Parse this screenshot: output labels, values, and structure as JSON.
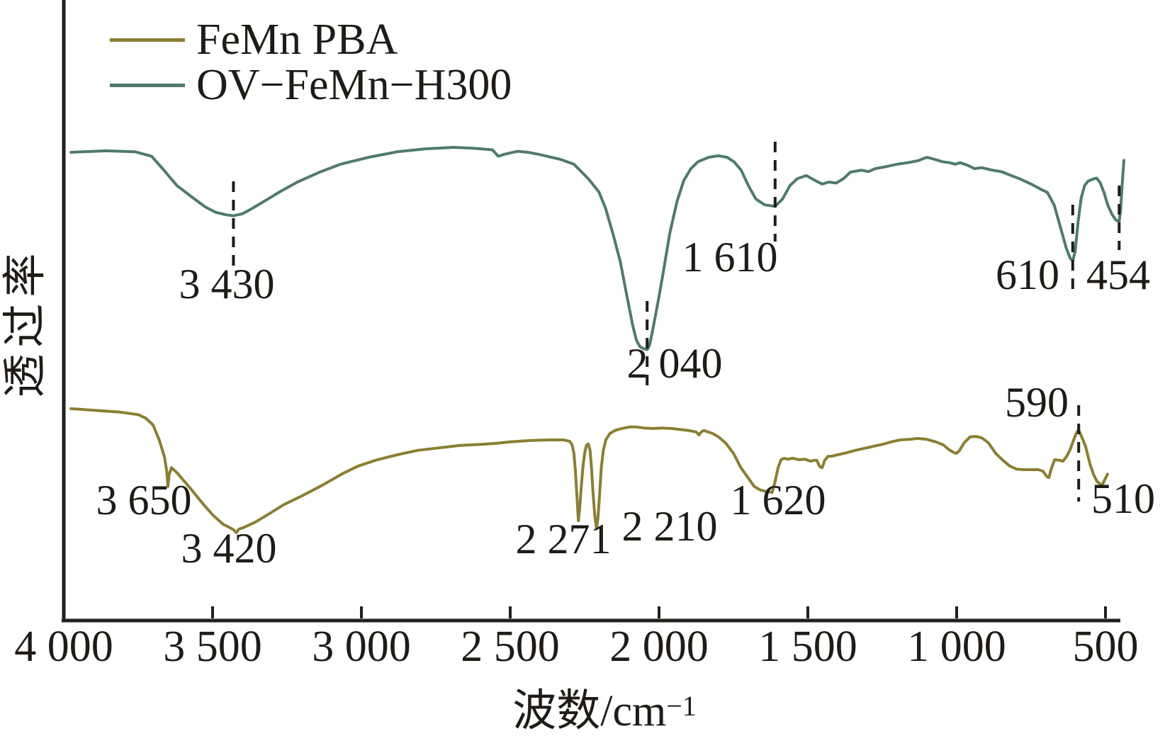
{
  "chart_data": {
    "type": "line",
    "title": "",
    "xlabel": "波数/cm⁻¹",
    "xlabel_base": "波数/cm",
    "xlabel_exponent": "−1",
    "ylabel": "透过率",
    "x_axis_reversed": true,
    "x_range": [
      4000,
      450
    ],
    "x_tick_values": [
      4000,
      3500,
      3000,
      2500,
      2000,
      1500,
      1000,
      500
    ],
    "x_tick_labels": [
      "4 000",
      "3 500",
      "3 000",
      "2 500",
      "2 000",
      "1 500",
      "1 000",
      "500"
    ],
    "y_axis_note": "transmittance, arbitrary units, no ticks",
    "grid": false,
    "legend_position": "top-left",
    "axis_color": "#231f1c",
    "background_color": "#ffffff",
    "series": [
      {
        "name": "FeMn PBA",
        "color": "#8a7f32",
        "labeled_peaks": [
          3650,
          3420,
          2271,
          2210,
          1620,
          590,
          510
        ],
        "points": [
          [
            3976,
            43.3
          ],
          [
            3880,
            42.9
          ],
          [
            3810,
            42.6
          ],
          [
            3750,
            42.1
          ],
          [
            3725,
            41.4
          ],
          [
            3700,
            40.0
          ],
          [
            3680,
            37.1
          ],
          [
            3662,
            33.6
          ],
          [
            3654,
            30.7
          ],
          [
            3650,
            27.6
          ],
          [
            3646,
            30.0
          ],
          [
            3638,
            31.4
          ],
          [
            3620,
            30.4
          ],
          [
            3600,
            29.0
          ],
          [
            3570,
            26.9
          ],
          [
            3535,
            24.3
          ],
          [
            3500,
            21.9
          ],
          [
            3465,
            20.0
          ],
          [
            3442,
            19.3
          ],
          [
            3430,
            18.9
          ],
          [
            3420,
            18.3
          ],
          [
            3412,
            19.0
          ],
          [
            3393,
            19.4
          ],
          [
            3357,
            20.4
          ],
          [
            3310,
            22.1
          ],
          [
            3262,
            23.9
          ],
          [
            3200,
            25.7
          ],
          [
            3130,
            27.9
          ],
          [
            3060,
            30.3
          ],
          [
            3012,
            31.7
          ],
          [
            2952,
            32.9
          ],
          [
            2880,
            34.0
          ],
          [
            2810,
            34.9
          ],
          [
            2738,
            35.4
          ],
          [
            2667,
            35.9
          ],
          [
            2595,
            36.1
          ],
          [
            2548,
            36.3
          ],
          [
            2500,
            36.6
          ],
          [
            2429,
            36.9
          ],
          [
            2370,
            37.0
          ],
          [
            2320,
            37.0
          ],
          [
            2300,
            36.7
          ],
          [
            2292,
            36.0
          ],
          [
            2286,
            34.3
          ],
          [
            2281,
            30.7
          ],
          [
            2276,
            25.7
          ],
          [
            2271,
            20.7
          ],
          [
            2267,
            23.0
          ],
          [
            2262,
            27.0
          ],
          [
            2256,
            31.4
          ],
          [
            2250,
            34.3
          ],
          [
            2244,
            35.9
          ],
          [
            2238,
            36.2
          ],
          [
            2232,
            35.0
          ],
          [
            2227,
            31.4
          ],
          [
            2222,
            26.4
          ],
          [
            2216,
            21.8
          ],
          [
            2210,
            19.0
          ],
          [
            2205,
            21.4
          ],
          [
            2200,
            25.7
          ],
          [
            2194,
            31.4
          ],
          [
            2187,
            35.0
          ],
          [
            2178,
            37.1
          ],
          [
            2165,
            38.3
          ],
          [
            2148,
            38.9
          ],
          [
            2125,
            39.3
          ],
          [
            2100,
            39.6
          ],
          [
            2075,
            39.6
          ],
          [
            2050,
            39.4
          ],
          [
            2020,
            39.3
          ],
          [
            1990,
            39.4
          ],
          [
            1960,
            39.3
          ],
          [
            1930,
            39.1
          ],
          [
            1900,
            38.9
          ],
          [
            1875,
            38.6
          ],
          [
            1866,
            38.0
          ],
          [
            1858,
            38.6
          ],
          [
            1850,
            38.9
          ],
          [
            1840,
            38.7
          ],
          [
            1820,
            38.3
          ],
          [
            1800,
            37.6
          ],
          [
            1775,
            36.3
          ],
          [
            1750,
            34.3
          ],
          [
            1725,
            31.4
          ],
          [
            1700,
            29.3
          ],
          [
            1680,
            27.6
          ],
          [
            1660,
            26.9
          ],
          [
            1640,
            26.6
          ],
          [
            1620,
            26.4
          ],
          [
            1610,
            28.6
          ],
          [
            1600,
            31.4
          ],
          [
            1590,
            33.0
          ],
          [
            1580,
            33.3
          ],
          [
            1568,
            33.1
          ],
          [
            1550,
            33.3
          ],
          [
            1530,
            33.0
          ],
          [
            1510,
            33.1
          ],
          [
            1490,
            32.7
          ],
          [
            1478,
            32.9
          ],
          [
            1470,
            32.9
          ],
          [
            1460,
            31.6
          ],
          [
            1452,
            31.4
          ],
          [
            1443,
            32.9
          ],
          [
            1432,
            33.7
          ],
          [
            1420,
            33.7
          ],
          [
            1400,
            34.0
          ],
          [
            1370,
            34.4
          ],
          [
            1340,
            34.9
          ],
          [
            1310,
            35.3
          ],
          [
            1280,
            35.7
          ],
          [
            1250,
            36.1
          ],
          [
            1220,
            36.6
          ],
          [
            1190,
            37.0
          ],
          [
            1160,
            37.1
          ],
          [
            1130,
            37.3
          ],
          [
            1100,
            37.1
          ],
          [
            1070,
            36.6
          ],
          [
            1045,
            36.0
          ],
          [
            1025,
            35.0
          ],
          [
            1008,
            34.4
          ],
          [
            1000,
            34.3
          ],
          [
            990,
            34.9
          ],
          [
            975,
            36.4
          ],
          [
            955,
            37.6
          ],
          [
            935,
            37.7
          ],
          [
            915,
            37.4
          ],
          [
            893,
            36.4
          ],
          [
            869,
            34.3
          ],
          [
            845,
            32.9
          ],
          [
            821,
            31.7
          ],
          [
            798,
            31.1
          ],
          [
            775,
            31.0
          ],
          [
            750,
            31.0
          ],
          [
            726,
            31.0
          ],
          [
            710,
            30.7
          ],
          [
            697,
            29.6
          ],
          [
            690,
            29.4
          ],
          [
            683,
            31.0
          ],
          [
            671,
            33.0
          ],
          [
            655,
            32.9
          ],
          [
            643,
            32.7
          ],
          [
            631,
            33.6
          ],
          [
            619,
            35.0
          ],
          [
            605,
            37.3
          ],
          [
            596,
            38.6
          ],
          [
            590,
            39.0
          ],
          [
            582,
            37.9
          ],
          [
            567,
            35.7
          ],
          [
            552,
            32.1
          ],
          [
            540,
            30.0
          ],
          [
            528,
            28.6
          ],
          [
            518,
            28.1
          ],
          [
            510,
            28.0
          ],
          [
            503,
            28.9
          ],
          [
            497,
            29.6
          ],
          [
            493,
            30.1
          ]
        ]
      },
      {
        "name": "OV−FeMn−H300",
        "color": "#4f7a70",
        "labeled_peaks": [
          3430,
          2040,
          1610,
          610,
          454
        ],
        "points": [
          [
            3976,
            95.0
          ],
          [
            3860,
            95.3
          ],
          [
            3760,
            95.1
          ],
          [
            3705,
            94.2
          ],
          [
            3665,
            91.5
          ],
          [
            3620,
            88.3
          ],
          [
            3570,
            86.0
          ],
          [
            3525,
            84.0
          ],
          [
            3490,
            82.9
          ],
          [
            3455,
            82.4
          ],
          [
            3430,
            82.2
          ],
          [
            3400,
            82.6
          ],
          [
            3375,
            83.4
          ],
          [
            3330,
            85.0
          ],
          [
            3275,
            87.0
          ],
          [
            3215,
            89.0
          ],
          [
            3140,
            91.0
          ],
          [
            3070,
            92.6
          ],
          [
            2975,
            94.0
          ],
          [
            2880,
            95.1
          ],
          [
            2785,
            95.7
          ],
          [
            2690,
            96.0
          ],
          [
            2620,
            95.8
          ],
          [
            2560,
            95.5
          ],
          [
            2540,
            94.2
          ],
          [
            2520,
            94.6
          ],
          [
            2475,
            95.2
          ],
          [
            2440,
            95.0
          ],
          [
            2405,
            94.6
          ],
          [
            2333,
            93.6
          ],
          [
            2286,
            92.6
          ],
          [
            2238,
            89.7
          ],
          [
            2202,
            87.0
          ],
          [
            2179,
            83.6
          ],
          [
            2155,
            78.6
          ],
          [
            2130,
            72.9
          ],
          [
            2107,
            65.7
          ],
          [
            2088,
            60.0
          ],
          [
            2076,
            57.1
          ],
          [
            2064,
            55.8
          ],
          [
            2052,
            55.4
          ],
          [
            2040,
            55.2
          ],
          [
            2032,
            56.1
          ],
          [
            2023,
            58.6
          ],
          [
            2005,
            64.3
          ],
          [
            1988,
            70.0
          ],
          [
            1964,
            78.6
          ],
          [
            1940,
            85.0
          ],
          [
            1917,
            89.3
          ],
          [
            1893,
            91.7
          ],
          [
            1869,
            93.1
          ],
          [
            1833,
            94.0
          ],
          [
            1800,
            94.3
          ],
          [
            1772,
            94.0
          ],
          [
            1748,
            93.1
          ],
          [
            1724,
            91.4
          ],
          [
            1700,
            88.3
          ],
          [
            1675,
            85.6
          ],
          [
            1645,
            84.4
          ],
          [
            1610,
            84.1
          ],
          [
            1585,
            85.6
          ],
          [
            1560,
            88.3
          ],
          [
            1535,
            89.7
          ],
          [
            1505,
            90.3
          ],
          [
            1475,
            89.3
          ],
          [
            1452,
            88.6
          ],
          [
            1430,
            89.0
          ],
          [
            1405,
            88.8
          ],
          [
            1380,
            89.7
          ],
          [
            1357,
            91.0
          ],
          [
            1320,
            91.4
          ],
          [
            1297,
            91.1
          ],
          [
            1274,
            91.7
          ],
          [
            1238,
            92.1
          ],
          [
            1200,
            92.6
          ],
          [
            1165,
            92.9
          ],
          [
            1130,
            93.3
          ],
          [
            1100,
            94.0
          ],
          [
            1075,
            93.6
          ],
          [
            1048,
            93.1
          ],
          [
            1024,
            92.9
          ],
          [
            1005,
            92.6
          ],
          [
            988,
            92.9
          ],
          [
            964,
            92.4
          ],
          [
            940,
            91.7
          ],
          [
            916,
            91.9
          ],
          [
            880,
            91.4
          ],
          [
            850,
            91.1
          ],
          [
            820,
            90.4
          ],
          [
            786,
            89.6
          ],
          [
            750,
            88.6
          ],
          [
            719,
            87.6
          ],
          [
            695,
            86.9
          ],
          [
            672,
            84.3
          ],
          [
            652,
            80.0
          ],
          [
            632,
            75.7
          ],
          [
            618,
            73.6
          ],
          [
            610,
            73.1
          ],
          [
            602,
            75.0
          ],
          [
            592,
            81.0
          ],
          [
            582,
            85.7
          ],
          [
            570,
            88.3
          ],
          [
            558,
            89.2
          ],
          [
            542,
            89.6
          ],
          [
            530,
            89.8
          ],
          [
            518,
            88.9
          ],
          [
            505,
            86.9
          ],
          [
            492,
            84.3
          ],
          [
            478,
            82.5
          ],
          [
            466,
            81.4
          ],
          [
            454,
            81.0
          ],
          [
            449,
            83.5
          ],
          [
            445,
            87.5
          ],
          [
            441,
            91.0
          ],
          [
            438,
            93.4
          ]
        ]
      }
    ],
    "annotations": [
      {
        "text": "3 430",
        "series": "OV−FeMn−H300",
        "wavenumber": 3430,
        "dashed": true
      },
      {
        "text": "2 040",
        "series": "OV−FeMn−H300",
        "wavenumber": 2040,
        "dashed": true
      },
      {
        "text": "1 610",
        "series": "OV−FeMn−H300",
        "wavenumber": 1610,
        "dashed": true
      },
      {
        "text": "610",
        "series": "OV−FeMn−H300",
        "wavenumber": 610,
        "dashed": true
      },
      {
        "text": "454",
        "series": "OV−FeMn−H300",
        "wavenumber": 454,
        "dashed": true
      },
      {
        "text": "3 650",
        "series": "FeMn PBA",
        "wavenumber": 3650,
        "dashed": false
      },
      {
        "text": "3 420",
        "series": "FeMn PBA",
        "wavenumber": 3420,
        "dashed": false
      },
      {
        "text": "2 271",
        "series": "FeMn PBA",
        "wavenumber": 2271,
        "dashed": false
      },
      {
        "text": "2 210",
        "series": "FeMn PBA",
        "wavenumber": 2210,
        "dashed": false
      },
      {
        "text": "1 620",
        "series": "FeMn PBA",
        "wavenumber": 1620,
        "dashed": false
      },
      {
        "text": "590",
        "series": "FeMn PBA",
        "wavenumber": 590,
        "dashed": true
      },
      {
        "text": "510",
        "series": "FeMn PBA",
        "wavenumber": 510,
        "dashed": false
      }
    ]
  },
  "legend": {
    "items": [
      {
        "label": "FeMn PBA",
        "color": "#8a7f32"
      },
      {
        "label": "OV−FeMn−H300",
        "color": "#4f7a70"
      }
    ]
  }
}
